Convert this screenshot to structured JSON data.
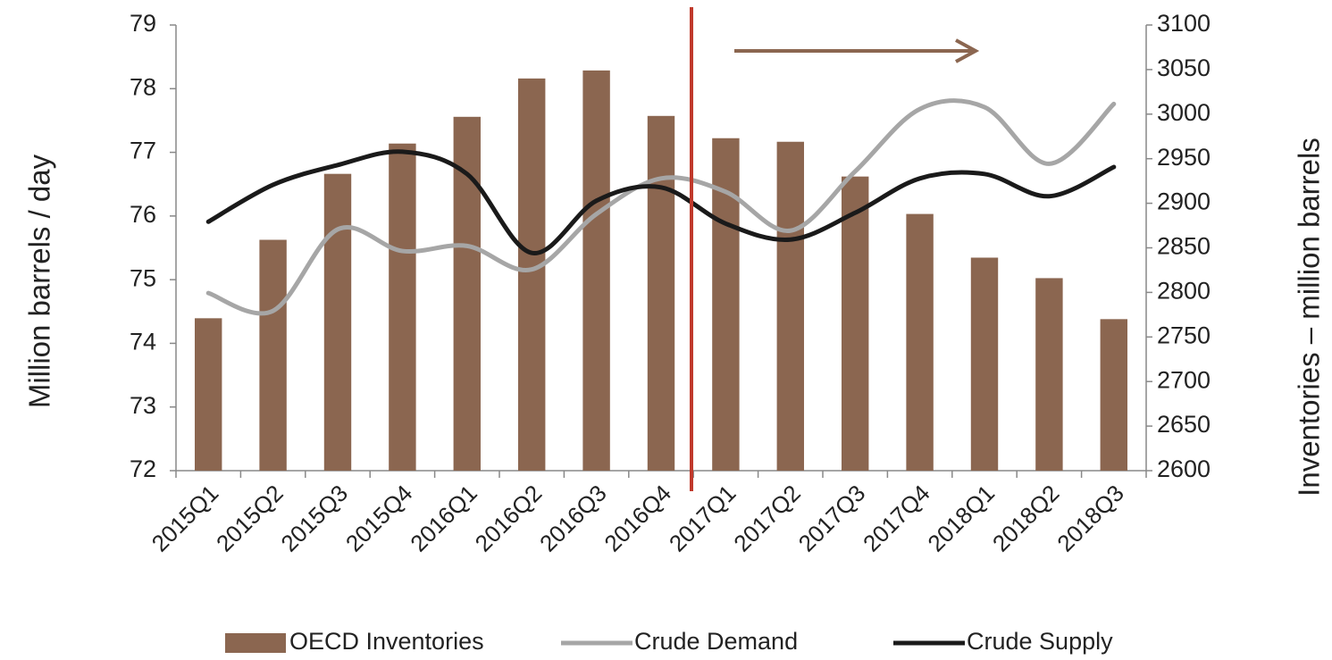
{
  "chart_data": {
    "type": "bar_line",
    "y_label": "Million barrels / day",
    "y2_label": "Inventories – million barrels",
    "categories": [
      "2015Q1",
      "2015Q2",
      "2015Q3",
      "2015Q4",
      "2016Q1",
      "2016Q2",
      "2016Q3",
      "2016Q4",
      "2017Q1",
      "2017Q2",
      "2017Q3",
      "2017Q4",
      "2018Q1",
      "2018Q2",
      "2018Q3"
    ],
    "series": [
      {
        "name": "OECD Inventories",
        "type": "bar",
        "axis": "y2",
        "color": "#8b6650",
        "values": [
          2771,
          2859,
          2933,
          2967,
          2997,
          3040,
          3049,
          2998,
          2973,
          2969,
          2930,
          2888,
          2839,
          2816,
          2770
        ]
      },
      {
        "name": "Crude Demand",
        "type": "line",
        "color": "#a6a6a6",
        "values": [
          74.79,
          74.51,
          75.79,
          75.45,
          75.53,
          75.16,
          76.03,
          76.59,
          76.38,
          75.77,
          76.7,
          77.68,
          77.71,
          76.82,
          77.76
        ]
      },
      {
        "name": "Crude Supply",
        "type": "line",
        "color": "#1a1a1a",
        "values": [
          75.91,
          76.49,
          76.8,
          77.01,
          76.66,
          75.42,
          76.24,
          76.45,
          75.88,
          75.63,
          76.05,
          76.59,
          76.66,
          76.31,
          76.77
        ]
      }
    ],
    "ylim": [
      72,
      79
    ],
    "yticks": [
      72,
      73,
      74,
      75,
      76,
      77,
      78,
      79
    ],
    "y2lim": [
      2600,
      3100
    ],
    "y2ticks": [
      2600,
      2650,
      2700,
      2750,
      2800,
      2850,
      2900,
      2950,
      3000,
      3050,
      3100
    ],
    "legend": "bottom"
  }
}
